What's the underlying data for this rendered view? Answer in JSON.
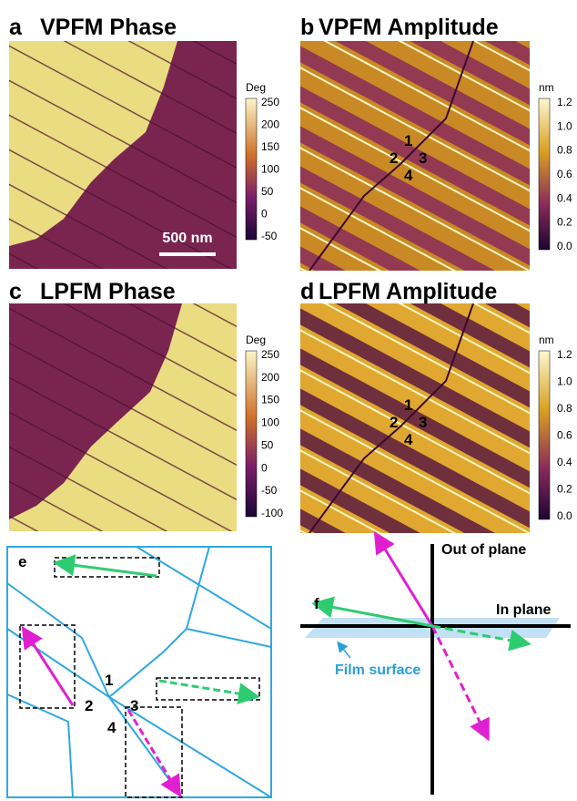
{
  "panels": [
    {
      "letter": "a",
      "title": "VPFM Phase",
      "colorbar": {
        "unit": "Deg",
        "ticks": [
          "250",
          "200",
          "150",
          "100",
          "50",
          "0",
          "-50"
        ]
      },
      "scale_bar": "500 nm"
    },
    {
      "letter": "b",
      "title": "VPFM Amplitude",
      "colorbar": {
        "unit": "nm",
        "ticks": [
          "1.2",
          "1.0",
          "0.8",
          "0.6",
          "0.4",
          "0.2",
          "0.0"
        ]
      },
      "labels": [
        "1",
        "2",
        "3",
        "4"
      ]
    },
    {
      "letter": "c",
      "title": "LPFM Phase",
      "colorbar": {
        "unit": "Deg",
        "ticks": [
          "250",
          "200",
          "150",
          "100",
          "50",
          "0",
          "-50",
          "-100"
        ]
      }
    },
    {
      "letter": "d",
      "title": "LPFM Amplitude",
      "colorbar": {
        "unit": "nm",
        "ticks": [
          "1.2",
          "1.0",
          "0.8",
          "0.6",
          "0.4",
          "0.2",
          "0.0"
        ]
      },
      "labels": [
        "1",
        "2",
        "3",
        "4"
      ]
    }
  ],
  "schematic_e": {
    "letter": "e",
    "labels": [
      "1",
      "2",
      "3",
      "4"
    ]
  },
  "schematic_f": {
    "letter": "f",
    "out_of_plane": "Out of plane",
    "in_plane": "In plane",
    "film_surface": "Film surface"
  }
}
